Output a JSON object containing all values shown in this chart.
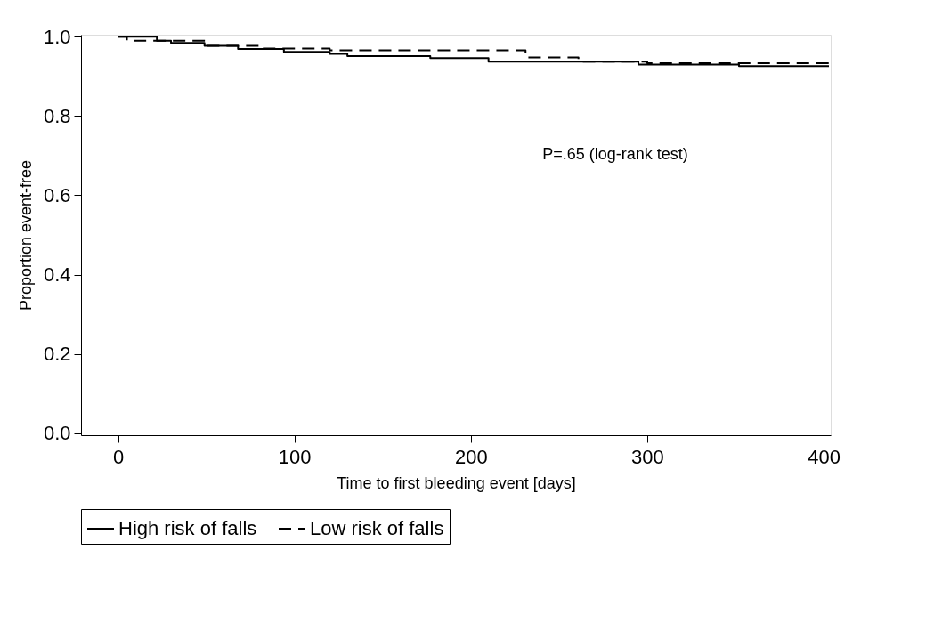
{
  "chart_data": {
    "type": "step",
    "xlabel": "Time to first bleeding event [days]",
    "ylabel": "Proportion event-free",
    "xlim": [
      -21,
      404
    ],
    "ylim": [
      -0.005,
      1.005
    ],
    "xticks": [
      0,
      100,
      200,
      300,
      400
    ],
    "yticks": [
      {
        "value": 0,
        "label": "0.0"
      },
      {
        "value": 0.2,
        "label": "0.2"
      },
      {
        "value": 0.4,
        "label": "0.4"
      },
      {
        "value": 0.6,
        "label": "0.6"
      },
      {
        "value": 0.8,
        "label": "0.8"
      },
      {
        "value": 1,
        "label": "1.0"
      }
    ],
    "series": [
      {
        "name": "High risk of falls",
        "color": "#000000",
        "line_style": "solid",
        "x": [
          0,
          22,
          30,
          49,
          68,
          94,
          120,
          130,
          177,
          210,
          295,
          352,
          403
        ],
        "values": [
          1.0,
          0.99,
          0.984,
          0.977,
          0.969,
          0.962,
          0.957,
          0.951,
          0.946,
          0.937,
          0.93,
          0.926,
          0.926
        ]
      },
      {
        "name": "Low risk of falls",
        "color": "#000000",
        "line_style": "dashed",
        "x": [
          0,
          5,
          50,
          80,
          120,
          231,
          261,
          300,
          403
        ],
        "values": [
          1.0,
          0.99,
          0.977,
          0.97,
          0.966,
          0.948,
          0.937,
          0.933,
          0.933
        ]
      }
    ],
    "annotations": [
      "P=.65 (log-rank test)"
    ],
    "legend": "bottom",
    "marker": "none",
    "grid": false
  }
}
